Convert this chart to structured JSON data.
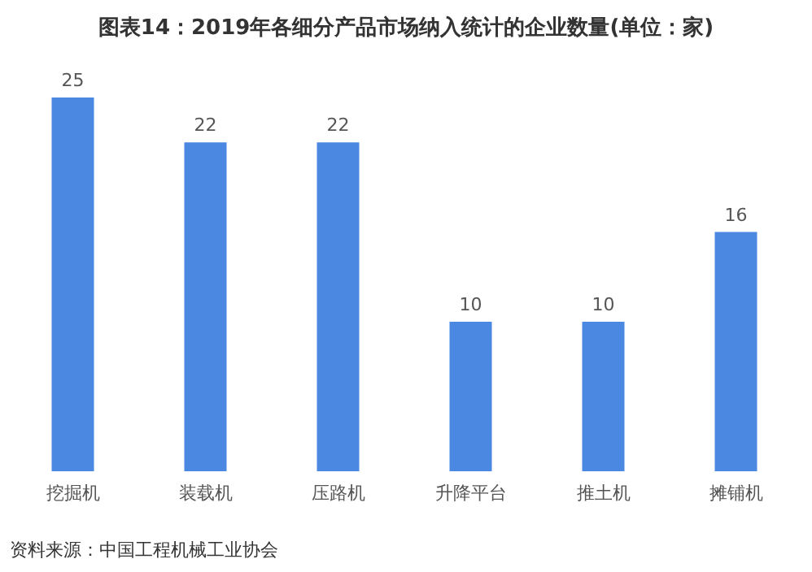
{
  "chart_data": {
    "type": "bar",
    "title": "图表14：2019年各细分产品市场纳入统计的企业数量(单位：家)",
    "categories": [
      "挖掘机",
      "装载机",
      "压路机",
      "升降平台",
      "推土机",
      "摊铺机"
    ],
    "values": [
      25,
      22,
      22,
      10,
      10,
      16
    ],
    "color": "#4a88e2",
    "data_labels": true,
    "annotations": [
      "资料来源：中国工程机械工业协会"
    ]
  }
}
